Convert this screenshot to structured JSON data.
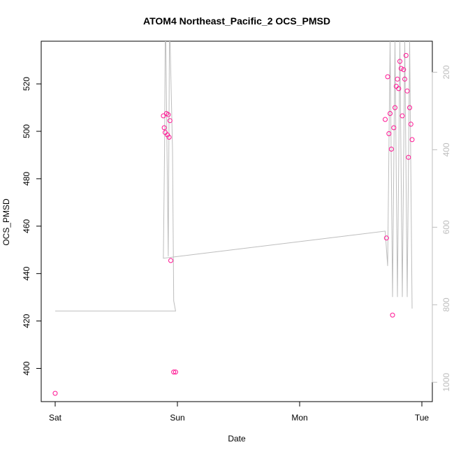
{
  "chart_data": {
    "type": "scatter",
    "title": "ATOM4 Northeast_Pacific_2 OCS_PMSD",
    "xlabel": "Date",
    "ylabel": "OCS_PMSD",
    "x_tick_labels": [
      "Sat",
      "Sun",
      "Mon",
      "Tue"
    ],
    "x_tick_positions": [
      0,
      1,
      2,
      3
    ],
    "xlim": [
      0,
      3
    ],
    "ylim": [
      386,
      538
    ],
    "y_ticks": [
      400,
      420,
      440,
      460,
      480,
      500,
      520
    ],
    "grid": false,
    "point_color": "#ff1493",
    "line_color": "#bdbdbd",
    "right_axis": {
      "label": "",
      "color": "#bdbdbd",
      "ticks": [
        200,
        400,
        600,
        800,
        1000
      ],
      "lim": [
        120,
        1050
      ],
      "inverted": true
    },
    "series": [
      {
        "kind": "points",
        "x": [
          0.0,
          0.885,
          0.892,
          0.9,
          0.91,
          0.918,
          0.925,
          0.932,
          0.939,
          0.946,
          0.97,
          0.985,
          2.7,
          2.71,
          2.72,
          2.73,
          2.74,
          2.75,
          2.76,
          2.77,
          2.78,
          2.79,
          2.8,
          2.81,
          2.82,
          2.83,
          2.84,
          2.85,
          2.86,
          2.87,
          2.88,
          2.89,
          2.9,
          2.91,
          2.92
        ],
        "y": [
          389.5,
          506.5,
          501.5,
          499.5,
          507.5,
          498.5,
          507,
          497.5,
          504.5,
          445.5,
          398.5,
          398.5,
          505,
          455,
          523,
          499,
          507.5,
          492.5,
          422.5,
          501.5,
          510,
          519,
          522,
          518,
          529.5,
          526.5,
          506.5,
          526,
          522,
          532,
          517,
          489,
          510,
          503,
          496.5
        ]
      },
      {
        "kind": "line",
        "x": [
          0.0,
          0.985,
          0.97,
          0.96,
          0.94,
          0.935,
          0.925,
          0.915,
          0.905,
          0.9,
          0.895,
          0.885,
          2.7,
          2.72,
          2.74,
          2.76,
          2.78,
          2.8,
          2.82,
          2.84,
          2.86,
          2.88,
          2.9,
          2.92
        ],
        "y": [
          816,
          816,
          790,
          400,
          120,
          120,
          675,
          400,
          120,
          120,
          400,
          680,
          610,
          700,
          120,
          780,
          120,
          780,
          120,
          780,
          120,
          780,
          120,
          810
        ]
      }
    ]
  }
}
